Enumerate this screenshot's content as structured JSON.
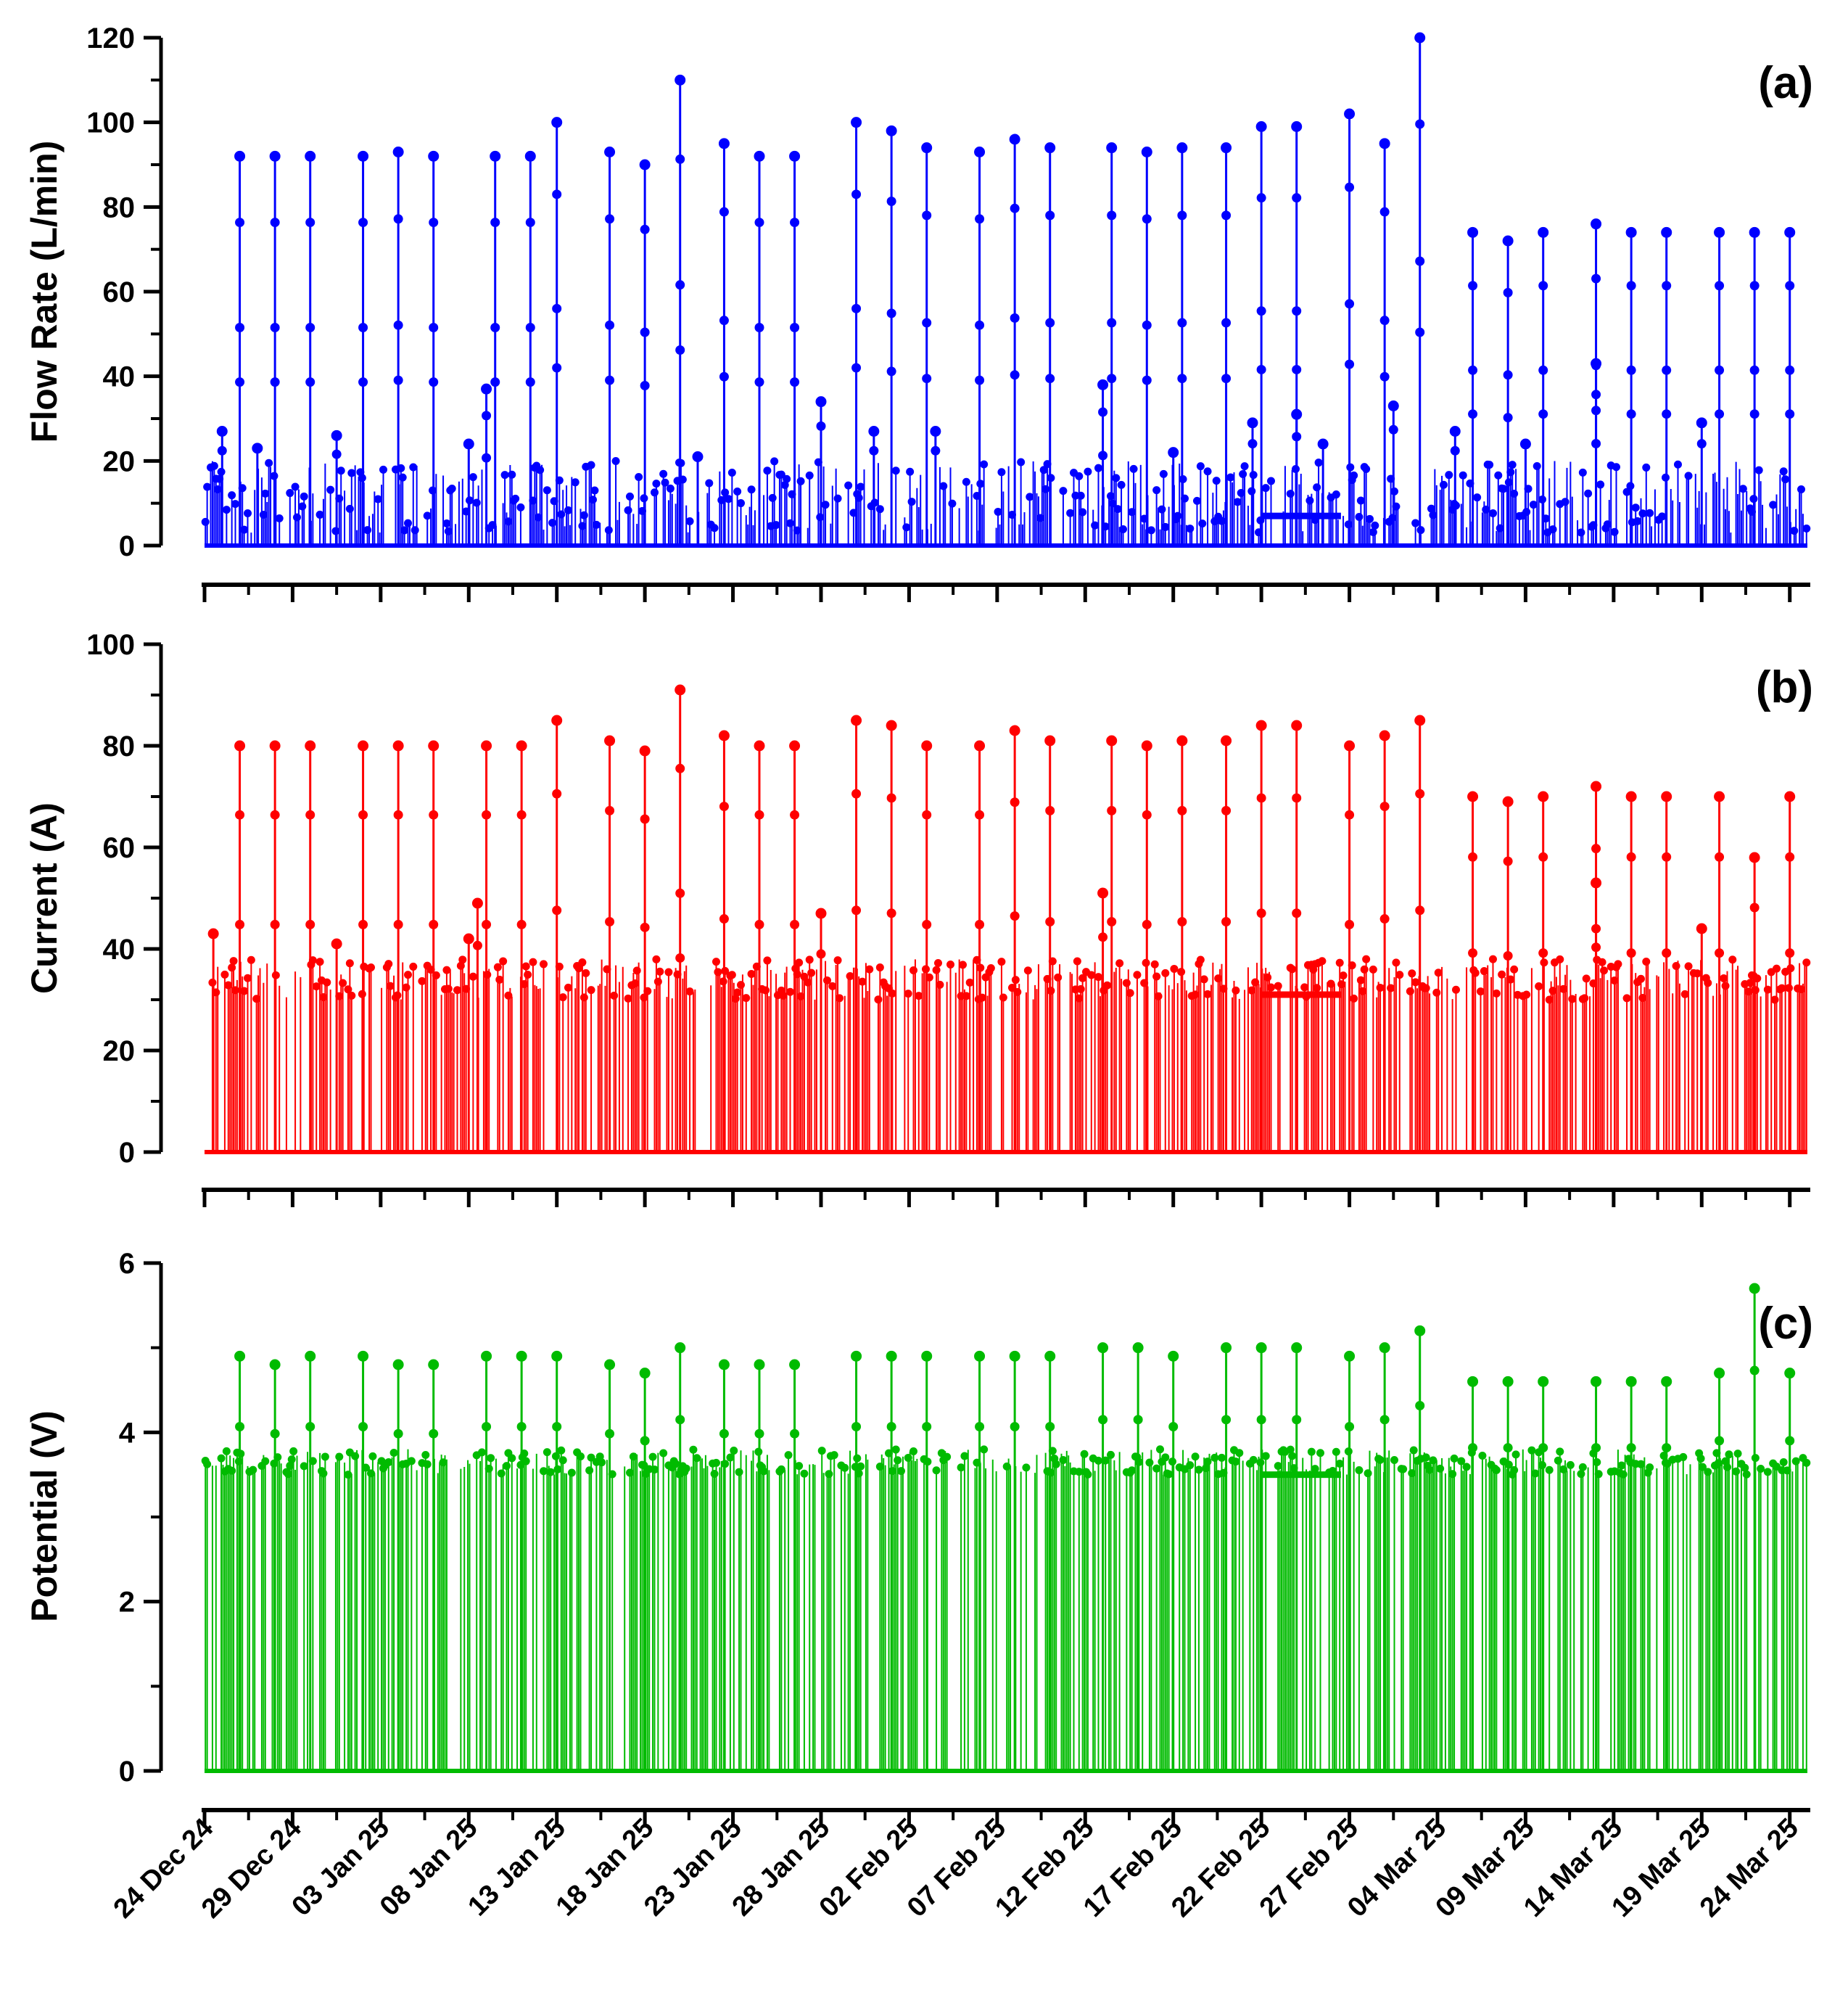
{
  "chart_data": [
    {
      "type": "line",
      "panel_label": "(a)",
      "ylabel": "Flow Rate (L/min)",
      "ylim": [
        0,
        120
      ],
      "yticks": [
        0,
        20,
        40,
        60,
        80,
        100,
        120
      ],
      "ytick_labels": [
        "0",
        "20",
        "40",
        "60",
        "80",
        "100",
        "120"
      ],
      "color": "#0000ff",
      "series": [
        {
          "name": "Flow Rate",
          "baseline": 0,
          "noise_range": [
            3,
            20
          ],
          "plateau": {
            "from_day": 60,
            "to_day": 64.5,
            "value": 7
          },
          "peaks": [
            [
              2,
              27
            ],
            [
              4,
              92
            ],
            [
              6,
              23
            ],
            [
              8,
              92
            ],
            [
              12,
              92
            ],
            [
              15,
              26
            ],
            [
              18,
              92
            ],
            [
              22,
              93
            ],
            [
              26,
              92
            ],
            [
              30,
              24
            ],
            [
              32,
              37
            ],
            [
              33,
              92
            ],
            [
              37,
              92
            ],
            [
              40,
              100
            ],
            [
              46,
              93
            ],
            [
              50,
              90
            ],
            [
              54,
              110
            ],
            [
              56,
              21
            ],
            [
              59,
              95
            ],
            [
              63,
              92
            ],
            [
              67,
              92
            ],
            [
              70,
              34
            ],
            [
              74,
              100
            ],
            [
              76,
              27
            ],
            [
              78,
              98
            ],
            [
              82,
              94
            ],
            [
              83,
              27
            ],
            [
              88,
              93
            ],
            [
              92,
              96
            ],
            [
              96,
              94
            ],
            [
              102,
              38
            ],
            [
              103,
              94
            ],
            [
              107,
              93
            ],
            [
              110,
              22
            ],
            [
              111,
              94
            ],
            [
              116,
              94
            ],
            [
              119,
              29
            ],
            [
              120,
              99
            ],
            [
              124,
              31
            ],
            [
              124,
              99
            ],
            [
              127,
              24
            ],
            [
              130,
              102
            ],
            [
              134,
              95
            ],
            [
              135,
              33
            ],
            [
              138,
              120
            ],
            [
              142,
              27
            ],
            [
              144,
              74
            ],
            [
              148,
              72
            ],
            [
              150,
              24
            ],
            [
              152,
              74
            ],
            [
              158,
              43
            ],
            [
              158,
              76
            ],
            [
              162,
              74
            ],
            [
              166,
              74
            ],
            [
              170,
              29
            ],
            [
              172,
              74
            ],
            [
              176,
              74
            ],
            [
              180,
              74
            ]
          ]
        }
      ]
    },
    {
      "type": "line",
      "panel_label": "(b)",
      "ylabel": "Current (A)",
      "ylim": [
        0,
        100
      ],
      "yticks": [
        0,
        20,
        40,
        60,
        80,
        100
      ],
      "ytick_labels": [
        "0",
        "20",
        "40",
        "60",
        "80",
        "100"
      ],
      "color": "#ff0000",
      "series": [
        {
          "name": "Current",
          "baseline": 0,
          "noise_range": [
            30,
            38
          ],
          "plateau": {
            "from_day": 60,
            "to_day": 64.5,
            "value": 31
          },
          "peaks": [
            [
              1,
              43
            ],
            [
              4,
              80
            ],
            [
              8,
              80
            ],
            [
              12,
              80
            ],
            [
              15,
              41
            ],
            [
              18,
              80
            ],
            [
              22,
              80
            ],
            [
              26,
              80
            ],
            [
              30,
              42
            ],
            [
              31,
              49
            ],
            [
              32,
              80
            ],
            [
              36,
              80
            ],
            [
              40,
              85
            ],
            [
              46,
              81
            ],
            [
              50,
              79
            ],
            [
              54,
              91
            ],
            [
              59,
              82
            ],
            [
              63,
              80
            ],
            [
              67,
              80
            ],
            [
              70,
              47
            ],
            [
              74,
              85
            ],
            [
              78,
              84
            ],
            [
              82,
              80
            ],
            [
              88,
              80
            ],
            [
              92,
              83
            ],
            [
              96,
              81
            ],
            [
              102,
              51
            ],
            [
              103,
              81
            ],
            [
              107,
              80
            ],
            [
              111,
              81
            ],
            [
              116,
              81
            ],
            [
              120,
              84
            ],
            [
              124,
              84
            ],
            [
              130,
              80
            ],
            [
              134,
              82
            ],
            [
              138,
              85
            ],
            [
              144,
              70
            ],
            [
              148,
              69
            ],
            [
              152,
              70
            ],
            [
              158,
              53
            ],
            [
              158,
              72
            ],
            [
              162,
              70
            ],
            [
              166,
              70
            ],
            [
              170,
              44
            ],
            [
              172,
              70
            ],
            [
              176,
              58
            ],
            [
              180,
              70
            ]
          ]
        }
      ]
    },
    {
      "type": "line",
      "panel_label": "(c)",
      "ylabel": "Potential (V)",
      "ylim": [
        0,
        6
      ],
      "yticks": [
        0,
        2,
        4,
        6
      ],
      "ytick_labels": [
        "0",
        "2",
        "4",
        "6"
      ],
      "color": "#00bb00",
      "series": [
        {
          "name": "Potential",
          "baseline": 0,
          "noise_range": [
            3.5,
            3.8
          ],
          "plateau": {
            "from_day": 60,
            "to_day": 64.5,
            "value": 3.5
          },
          "peaks": [
            [
              4,
              4.9
            ],
            [
              8,
              4.8
            ],
            [
              12,
              4.9
            ],
            [
              18,
              4.9
            ],
            [
              22,
              4.8
            ],
            [
              26,
              4.8
            ],
            [
              32,
              4.9
            ],
            [
              36,
              4.9
            ],
            [
              40,
              4.9
            ],
            [
              46,
              4.8
            ],
            [
              50,
              4.7
            ],
            [
              54,
              5.0
            ],
            [
              59,
              4.8
            ],
            [
              63,
              4.8
            ],
            [
              67,
              4.8
            ],
            [
              74,
              4.9
            ],
            [
              78,
              4.9
            ],
            [
              82,
              4.9
            ],
            [
              88,
              4.9
            ],
            [
              92,
              4.9
            ],
            [
              96,
              4.9
            ],
            [
              102,
              5.0
            ],
            [
              106,
              5.0
            ],
            [
              110,
              4.9
            ],
            [
              116,
              5.0
            ],
            [
              120,
              5.0
            ],
            [
              124,
              5.0
            ],
            [
              130,
              4.9
            ],
            [
              134,
              5.0
            ],
            [
              138,
              5.2
            ],
            [
              144,
              4.6
            ],
            [
              148,
              4.6
            ],
            [
              152,
              4.6
            ],
            [
              158,
              4.6
            ],
            [
              162,
              4.6
            ],
            [
              166,
              4.6
            ],
            [
              172,
              4.7
            ],
            [
              176,
              5.7
            ],
            [
              180,
              4.7
            ]
          ]
        }
      ]
    }
  ],
  "x_axis": {
    "xlim_days": [
      0,
      91
    ],
    "tick_days": [
      0,
      5,
      10,
      15,
      20,
      25,
      30,
      35,
      40,
      45,
      50,
      55,
      60,
      65,
      70,
      75,
      80,
      85,
      90
    ],
    "tick_labels": [
      "24 Dec 24",
      "29 Dec 24",
      "03 Jan 25",
      "08 Jan 25",
      "13 Jan 25",
      "18 Jan 25",
      "23 Jan 25",
      "28 Jan 25",
      "02 Feb 25",
      "07 Feb 25",
      "12 Feb 25",
      "17 Feb 25",
      "22 Feb 25",
      "27 Feb 25",
      "04 Mar 25",
      "09 Mar 25",
      "14 Mar 25",
      "19 Mar 25",
      "24 Mar 25"
    ]
  }
}
